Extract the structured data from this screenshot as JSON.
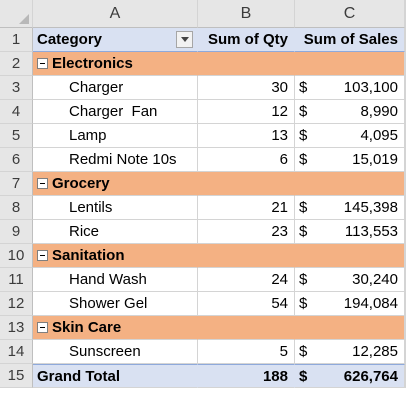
{
  "columns": [
    "A",
    "B",
    "C"
  ],
  "rows": [
    "1",
    "2",
    "3",
    "4",
    "5",
    "6",
    "7",
    "8",
    "9",
    "10",
    "11",
    "12",
    "13",
    "14",
    "15"
  ],
  "header": {
    "category": "Category",
    "qty": "Sum of Qty",
    "sales": "Sum of Sales"
  },
  "currency": "$",
  "groups": [
    {
      "name": "Electronics",
      "items": [
        {
          "name": "Charger",
          "qty": "30",
          "sales": "103,100"
        },
        {
          "name": "Charger  Fan",
          "qty": "12",
          "sales": "8,990"
        },
        {
          "name": "Lamp",
          "qty": "13",
          "sales": "4,095"
        },
        {
          "name": "Redmi Note 10s",
          "qty": "6",
          "sales": "15,019"
        }
      ]
    },
    {
      "name": "Grocery",
      "items": [
        {
          "name": "Lentils",
          "qty": "21",
          "sales": "145,398"
        },
        {
          "name": "Rice",
          "qty": "23",
          "sales": "113,553"
        }
      ]
    },
    {
      "name": "Sanitation",
      "items": [
        {
          "name": "Hand Wash",
          "qty": "24",
          "sales": "30,240"
        },
        {
          "name": "Shower Gel",
          "qty": "54",
          "sales": "194,084"
        }
      ]
    },
    {
      "name": "Skin Care",
      "items": [
        {
          "name": "Sunscreen",
          "qty": "5",
          "sales": "12,285"
        }
      ]
    }
  ],
  "grand_total": {
    "label": "Grand Total",
    "qty": "188",
    "sales": "626,764"
  },
  "colors": {
    "header_fill": "#d9e1f2",
    "group_fill": "#f4b183"
  }
}
